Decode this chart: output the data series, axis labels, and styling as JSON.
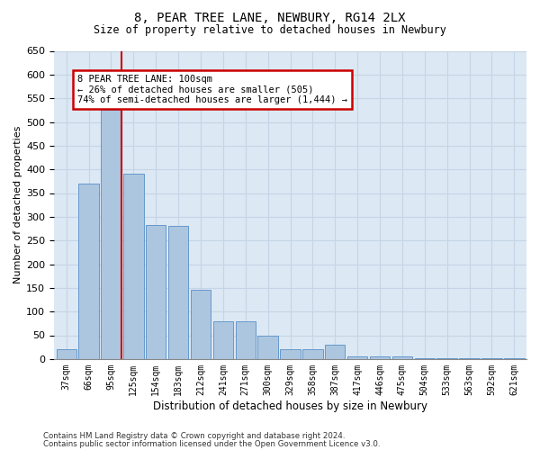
{
  "title": "8, PEAR TREE LANE, NEWBURY, RG14 2LX",
  "subtitle": "Size of property relative to detached houses in Newbury",
  "xlabel": "Distribution of detached houses by size in Newbury",
  "ylabel": "Number of detached properties",
  "categories": [
    "37sqm",
    "66sqm",
    "95sqm",
    "125sqm",
    "154sqm",
    "183sqm",
    "212sqm",
    "241sqm",
    "271sqm",
    "300sqm",
    "329sqm",
    "358sqm",
    "387sqm",
    "417sqm",
    "446sqm",
    "475sqm",
    "504sqm",
    "533sqm",
    "563sqm",
    "592sqm",
    "621sqm"
  ],
  "values": [
    20,
    370,
    525,
    390,
    283,
    280,
    145,
    80,
    80,
    50,
    20,
    20,
    30,
    5,
    5,
    5,
    2,
    2,
    2,
    2,
    2
  ],
  "bar_color": "#adc6e0",
  "bar_edge_color": "#6699cc",
  "bar_edge_width": 0.7,
  "grid_color": "#c5d5e5",
  "bg_color": "#dce8f4",
  "red_line_index": 2,
  "red_line_color": "#cc0000",
  "annotation_text": "8 PEAR TREE LANE: 100sqm\n← 26% of detached houses are smaller (505)\n74% of semi-detached houses are larger (1,444) →",
  "annotation_box_color": "#ffffff",
  "annotation_box_edge": "#cc0000",
  "ylim": [
    0,
    650
  ],
  "yticks": [
    0,
    50,
    100,
    150,
    200,
    250,
    300,
    350,
    400,
    450,
    500,
    550,
    600,
    650
  ],
  "footer_line1": "Contains HM Land Registry data © Crown copyright and database right 2024.",
  "footer_line2": "Contains public sector information licensed under the Open Government Licence v3.0."
}
